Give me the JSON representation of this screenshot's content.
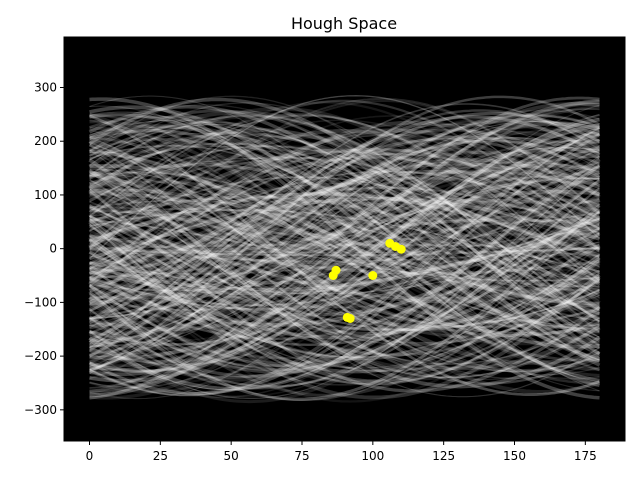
{
  "chart_data": {
    "type": "heatmap",
    "title": "Hough Space",
    "xlabel": "",
    "ylabel": "",
    "xlim": [
      -9,
      189
    ],
    "ylim": [
      -358,
      394
    ],
    "x_ticks": [
      0,
      25,
      50,
      75,
      100,
      125,
      150,
      175
    ],
    "y_ticks": [
      -300,
      -200,
      -100,
      0,
      100,
      200,
      300
    ],
    "x_tick_labels": [
      "0",
      "25",
      "50",
      "75",
      "100",
      "125",
      "150",
      "175"
    ],
    "y_tick_labels": [
      "−300",
      "−200",
      "−100",
      "0",
      "100",
      "200",
      "300"
    ],
    "theta_range": [
      0,
      180
    ],
    "background_color": "#000000",
    "curve_color": "#ffffff",
    "peak_color": "#ffff00",
    "peaks": [
      {
        "theta": 106,
        "rho": 10
      },
      {
        "theta": 108,
        "rho": 4
      },
      {
        "theta": 110,
        "rho": -1
      },
      {
        "theta": 87,
        "rho": -40
      },
      {
        "theta": 86,
        "rho": -50
      },
      {
        "theta": 100,
        "rho": -50
      },
      {
        "theta": 91,
        "rho": -128
      },
      {
        "theta": 92,
        "rho": -130
      }
    ]
  }
}
